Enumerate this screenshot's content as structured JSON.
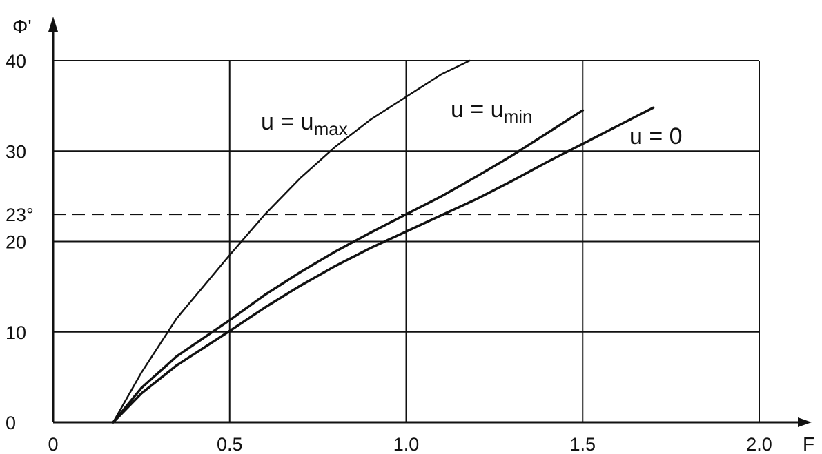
{
  "chart_data": {
    "type": "line",
    "title": "",
    "xlabel": "F",
    "ylabel": "Φ'",
    "xlim": [
      0,
      2.0
    ],
    "ylim": [
      0,
      40
    ],
    "grid": true,
    "x_ticks": [
      0,
      0.5,
      1.0,
      1.5,
      2.0
    ],
    "x_tick_labels": [
      "0",
      "0.5",
      "1.0",
      "1.5",
      "2.0"
    ],
    "y_ticks": [
      0,
      10,
      20,
      23,
      30,
      40
    ],
    "y_tick_labels": [
      "0",
      "10",
      "20",
      "23°",
      "30",
      "40"
    ],
    "reference_lines": [
      {
        "axis": "y",
        "value": 23,
        "style": "dashed"
      }
    ],
    "series": [
      {
        "name": "u = u_max",
        "label_main": "u = u",
        "label_sub": "max",
        "x": [
          0.17,
          0.25,
          0.35,
          0.5,
          0.6,
          0.7,
          0.8,
          0.9,
          1.0,
          1.1,
          1.18
        ],
        "y": [
          0,
          5.5,
          11.5,
          18.5,
          23.0,
          27.0,
          30.5,
          33.5,
          36.0,
          38.5,
          40.0
        ],
        "stroke_width": 2.5
      },
      {
        "name": "u = u_min",
        "label_main": "u = u",
        "label_sub": "min",
        "x": [
          0.17,
          0.25,
          0.35,
          0.5,
          0.6,
          0.7,
          0.8,
          0.9,
          1.0,
          1.1,
          1.2,
          1.3,
          1.4,
          1.5
        ],
        "y": [
          0,
          3.8,
          7.3,
          11.3,
          14.1,
          16.6,
          18.9,
          21.0,
          23.0,
          25.0,
          27.2,
          29.5,
          32.0,
          34.5
        ],
        "stroke_width": 3.5
      },
      {
        "name": "u = 0",
        "label_main": "u = 0",
        "label_sub": "",
        "x": [
          0.17,
          0.25,
          0.35,
          0.5,
          0.6,
          0.7,
          0.8,
          0.9,
          1.0,
          1.1,
          1.2,
          1.3,
          1.4,
          1.5,
          1.6,
          1.7
        ],
        "y": [
          0,
          3.2,
          6.3,
          10.1,
          12.7,
          15.1,
          17.3,
          19.3,
          21.1,
          22.9,
          24.7,
          26.7,
          28.8,
          30.8,
          32.8,
          34.8
        ],
        "stroke_width": 3.5
      }
    ]
  }
}
